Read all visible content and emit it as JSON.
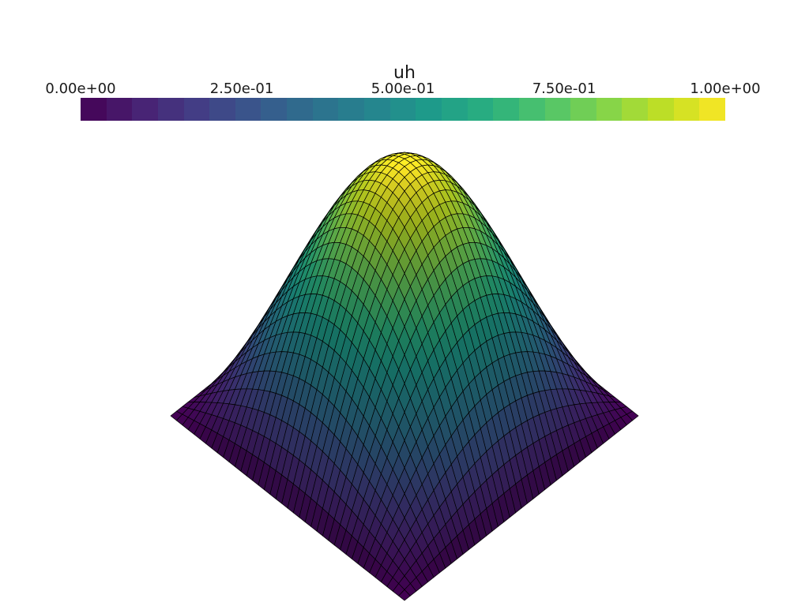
{
  "scalar_bar": {
    "title": "uh",
    "tick_labels": [
      "0.00e+00",
      "2.50e-01",
      "5.00e-01",
      "7.50e-01",
      "1.00e+00"
    ],
    "range": [
      0,
      1
    ],
    "n_colors": 25,
    "colormap": "viridis",
    "colors": [
      "#440154",
      "#482173",
      "#433e85",
      "#38588c",
      "#2d708e",
      "#25858e",
      "#1e9b8a",
      "#2ab07f",
      "#52c569",
      "#86d549",
      "#c2df23",
      "#fde725"
    ]
  },
  "mesh": {
    "field": "uh",
    "function": "sin(pi x) sin(pi y)",
    "resolution": 40,
    "edge_color": "#000000"
  }
}
